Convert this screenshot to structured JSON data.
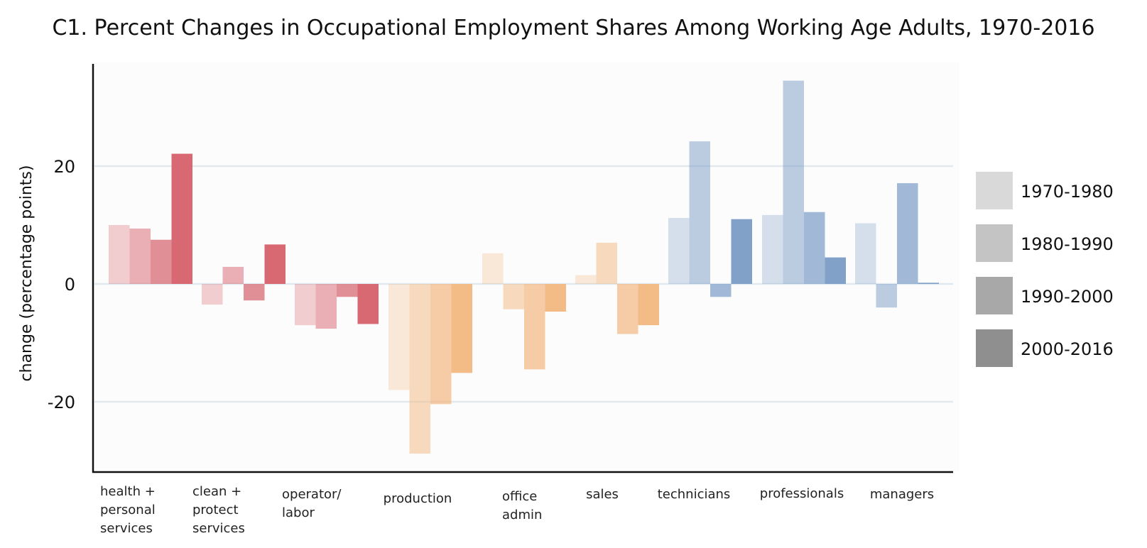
{
  "chart_data": {
    "type": "bar",
    "title": "C1. Percent Changes in Occupational Employment Shares Among Working Age Adults, 1970-2016",
    "xlabel": "",
    "ylabel": "change (percentage points)",
    "ylim": [
      -32,
      37
    ],
    "yticks": [
      20,
      0,
      -20
    ],
    "ytick_labels": [
      "20",
      "0",
      "-20"
    ],
    "grid": true,
    "legend_position": "right",
    "categories": [
      [
        "health +",
        "personal",
        "services"
      ],
      [
        "clean +",
        "protect",
        "services"
      ],
      [
        "operator/",
        "labor"
      ],
      [
        "production"
      ],
      [
        "office",
        "admin"
      ],
      [
        "sales"
      ],
      [
        "technicians"
      ],
      [
        "professionals"
      ],
      [
        "managers"
      ]
    ],
    "category_colors": [
      "#d6616b",
      "#d6616b",
      "#d6616b",
      "#f2b880",
      "#f2b880",
      "#f2b880",
      "#7a9cc6",
      "#7a9cc6",
      "#7a9cc6"
    ],
    "series": [
      {
        "name": "1970-1980",
        "opacity": 0.3,
        "legend_color": "#d9d9d9",
        "values": [
          10.0,
          -3.5,
          -7.0,
          -18.0,
          5.2,
          1.5,
          11.2,
          11.7,
          10.3
        ]
      },
      {
        "name": "1980-1990",
        "opacity": 0.5,
        "legend_color": "#c4c4c4",
        "values": [
          9.4,
          2.9,
          -7.6,
          -28.8,
          -4.3,
          7.0,
          24.2,
          34.5,
          -4.0
        ]
      },
      {
        "name": "1990-2000",
        "opacity": 0.7,
        "legend_color": "#a8a8a8",
        "values": [
          7.5,
          -2.8,
          -2.2,
          -20.4,
          -14.5,
          -8.5,
          -2.2,
          12.2,
          17.1
        ]
      },
      {
        "name": "2000-2016",
        "opacity": 0.95,
        "legend_color": "#8f8f8f",
        "values": [
          22.1,
          6.7,
          -6.8,
          -15.1,
          -4.7,
          -7.0,
          11.0,
          4.5,
          0.2
        ]
      }
    ]
  }
}
